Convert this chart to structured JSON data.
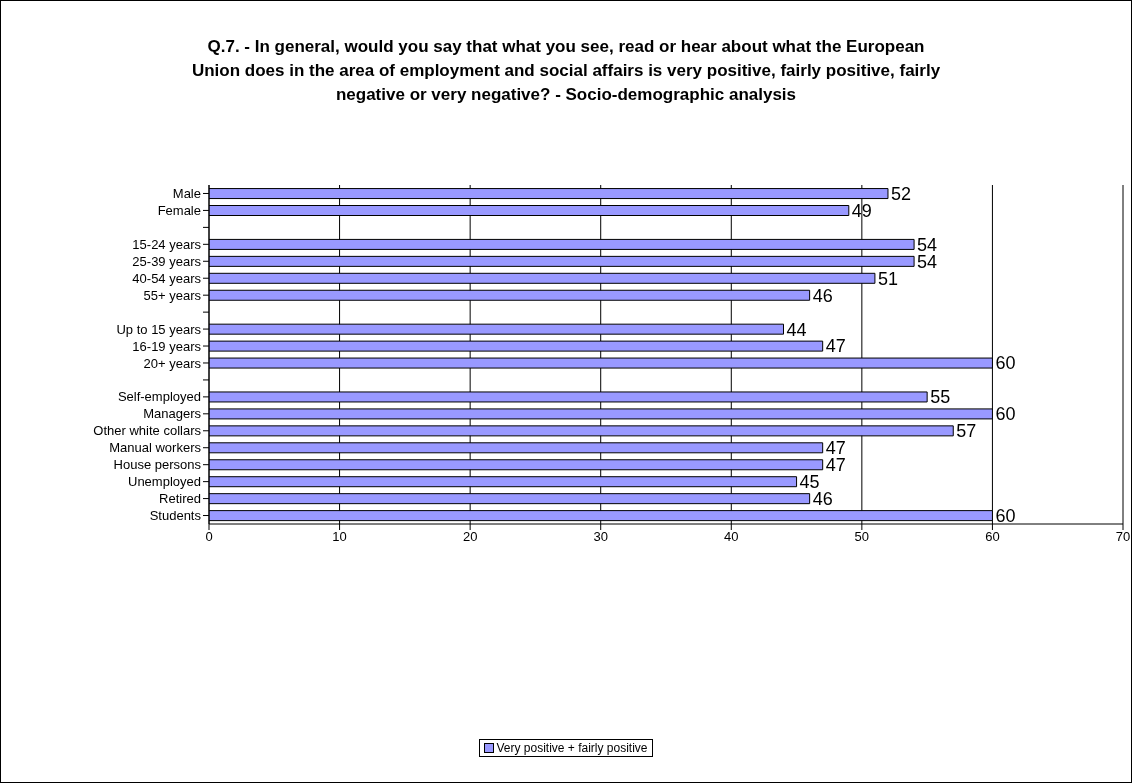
{
  "chart_data": {
    "type": "bar",
    "orientation": "horizontal",
    "title": "Q.7. - In general, would you say that what you see, read or hear about what the European Union does in the area of employment and social affairs is very positive, fairly positive, fairly negative or very negative? - Socio-demographic analysis",
    "categories": [
      "Male",
      "Female",
      null,
      "15-24 years",
      "25-39 years",
      "40-54 years",
      "55+ years",
      null,
      "Up to 15 years",
      "16-19 years",
      "20+ years",
      null,
      "Self-employed",
      "Managers",
      "Other white collars",
      "Manual workers",
      "House persons",
      "Unemployed",
      "Retired",
      "Students"
    ],
    "series": [
      {
        "name": "Very positive + fairly positive",
        "color": "#9999ff",
        "values": [
          52,
          49,
          null,
          54,
          54,
          51,
          46,
          null,
          44,
          47,
          60,
          null,
          55,
          60,
          57,
          47,
          47,
          45,
          46,
          60
        ]
      }
    ],
    "xlim": [
      0,
      70
    ],
    "xticks": [
      0,
      10,
      20,
      30,
      40,
      50,
      60,
      70
    ],
    "grid": "x",
    "legend": "bottom",
    "data_labels": true
  }
}
